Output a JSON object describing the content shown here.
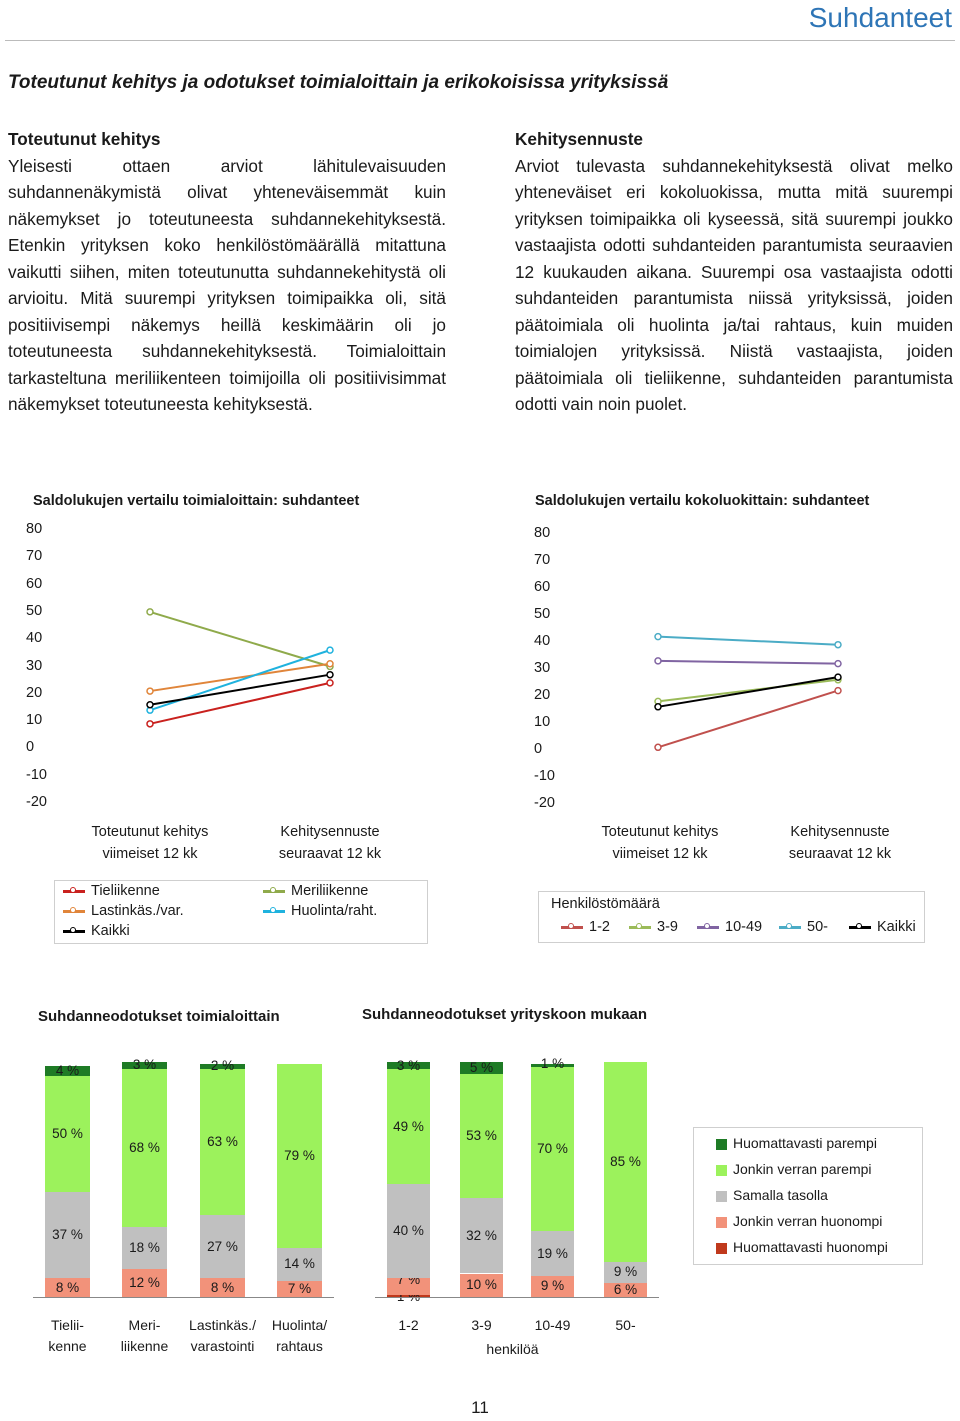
{
  "header": {
    "section": "Suhdanteet",
    "title": "Toteutunut kehitys ja odotukset toimialoittain ja erikokoisissa yrityksissä"
  },
  "left_column": {
    "heading": "Toteutunut kehitys",
    "text": "Yleisesti ottaen arviot lähitulevaisuuden suhdannenäkymistä olivat yhteneväisemmät kuin näkemykset jo toteutuneesta suhdannekehityksestä. Etenkin yrityksen koko henkilöstömäärällä mitattuna vaikutti siihen, miten toteutunutta suhdannekehitystä oli arvioitu. Mitä suurempi yrityksen toimipaikka oli, sitä positiivisempi näkemys heillä keskimäärin oli jo toteutuneesta suhdannekehityksestä. Toimialoittain tarkasteltuna meriliikenteen toimijoilla oli positiivisimmat näkemykset toteutuneesta kehityksestä."
  },
  "right_column": {
    "heading": "Kehitysennuste",
    "text": "Arviot tulevasta suhdannekehityksestä olivat melko yhteneväiset eri kokoluokissa, mutta mitä suurempi yrityksen toimipaikka oli kyseessä, sitä suurempi joukko vastaajista odotti suhdanteiden parantumista seuraavien 12 kuukauden aikana. Suurempi osa vastaajista odotti suhdanteiden parantumista niissä yrityksissä, joiden päätoimiala oli huolinta ja/tai rahtaus, kuin muiden toimialojen yrityksissä. Niistä vastaajista, joiden päätoimiala oli tieliikenne, suhdanteiden parantumista odotti vain noin puolet."
  },
  "chart_data": [
    {
      "type": "line",
      "title": "Saldolukujen vertailu toimialoittain: suhdanteet",
      "categories": [
        "Toteutunut kehitys viimeiset 12 kk",
        "Kehitysennuste seuraavat 12 kk"
      ],
      "category_lines": [
        [
          "Toteutunut kehitys",
          "viimeiset 12 kk"
        ],
        [
          "Kehitysennuste",
          "seuraavat 12 kk"
        ]
      ],
      "y_ticks": [
        "80",
        "70",
        "60",
        "50",
        "40",
        "30",
        "20",
        "10",
        "0",
        "-10",
        "-20"
      ],
      "ylim": [
        -20,
        80
      ],
      "series": [
        {
          "name": "Tieliikenne",
          "values": [
            9,
            24
          ],
          "color": "#c9211e"
        },
        {
          "name": "Meriliikenne",
          "values": [
            50,
            30
          ],
          "color": "#8faa4b"
        },
        {
          "name": "Lastinkäs./var.",
          "values": [
            21,
            31
          ],
          "color": "#e0853a"
        },
        {
          "name": "Huolinta/raht.",
          "values": [
            14,
            36
          ],
          "color": "#1fb2de"
        },
        {
          "name": "Kaikki",
          "values": [
            16,
            27
          ],
          "color": "#000000"
        }
      ]
    },
    {
      "type": "line",
      "title": "Saldolukujen vertailu kokoluokittain: suhdanteet",
      "categories": [
        "Toteutunut kehitys viimeiset 12 kk",
        "Kehitysennuste seuraavat 12 kk"
      ],
      "category_lines": [
        [
          "Toteutunut kehitys",
          "viimeiset 12 kk"
        ],
        [
          "Kehitysennuste",
          "seuraavat 12 kk"
        ]
      ],
      "y_ticks": [
        "80",
        "70",
        "60",
        "50",
        "40",
        "30",
        "20",
        "10",
        "0",
        "-10",
        "-20"
      ],
      "ylim": [
        -20,
        80
      ],
      "legend_title": "Henkilöstömäärä",
      "series": [
        {
          "name": "1-2",
          "values": [
            1,
            22
          ],
          "color": "#c0504d"
        },
        {
          "name": "3-9",
          "values": [
            18,
            26
          ],
          "color": "#9bbb59"
        },
        {
          "name": "10-49",
          "values": [
            33,
            32
          ],
          "color": "#8064a2"
        },
        {
          "name": "50-",
          "values": [
            42,
            39
          ],
          "color": "#4bacc6"
        },
        {
          "name": "Kaikki",
          "values": [
            16,
            27
          ],
          "color": "#000000"
        }
      ]
    },
    {
      "type": "bar",
      "stacked": true,
      "title": "Suhdanneodotukset toimialoittain",
      "categories": [
        "Tieliikenne",
        "Meriliikenne",
        "Lastinkäs./varastointi",
        "Huolinta/rahtaus"
      ],
      "category_lines": [
        [
          "Tielii-",
          "kenne"
        ],
        [
          "Meri-",
          "liikenne"
        ],
        [
          "Lastinkäs./",
          "varastointi"
        ],
        [
          "Huolinta/",
          "rahtaus"
        ]
      ],
      "series": [
        {
          "name": "Huomattavasti huonompi",
          "values": [
            0,
            0,
            0,
            0
          ],
          "labels": [
            "",
            "",
            "",
            ""
          ]
        },
        {
          "name": "Jonkin verran huonompi",
          "values": [
            8,
            12,
            8,
            7
          ],
          "labels": [
            "8 %",
            "12 %",
            "8 %",
            "7 %"
          ]
        },
        {
          "name": "Samalla tasolla",
          "values": [
            37,
            18,
            27,
            14
          ],
          "labels": [
            "37 %",
            "18 %",
            "27 %",
            "14 %"
          ]
        },
        {
          "name": "Jonkin verran parempi",
          "values": [
            50,
            68,
            63,
            79
          ],
          "labels": [
            "50 %",
            "68 %",
            "63 %",
            "79 %"
          ]
        },
        {
          "name": "Huomattavasti parempi",
          "values": [
            4,
            3,
            2,
            0
          ],
          "labels": [
            "4 %",
            "3 %",
            "2 %",
            ""
          ]
        }
      ]
    },
    {
      "type": "bar",
      "stacked": true,
      "title": "Suhdanneodotukset yrityskoon mukaan",
      "categories": [
        "1-2",
        "3-9",
        "10-49",
        "50-"
      ],
      "category_lines": [
        [
          "1-2"
        ],
        [
          "3-9"
        ],
        [
          "10-49"
        ],
        [
          "50-"
        ]
      ],
      "xlabel": "henkilöä",
      "series": [
        {
          "name": "Huomattavasti huonompi",
          "values": [
            1,
            0,
            0,
            0
          ],
          "labels": [
            "1 %",
            "",
            "",
            ""
          ]
        },
        {
          "name": "Jonkin verran huonompi",
          "values": [
            7,
            10,
            9,
            6
          ],
          "labels": [
            "7 %",
            "10 %",
            "9 %",
            "6 %"
          ]
        },
        {
          "name": "Samalla tasolla",
          "values": [
            40,
            32,
            19,
            9
          ],
          "labels": [
            "40 %",
            "32 %",
            "19 %",
            "9 %"
          ]
        },
        {
          "name": "Jonkin verran parempi",
          "values": [
            49,
            53,
            70,
            85
          ],
          "labels": [
            "49 %",
            "53 %",
            "70 %",
            "85 %"
          ]
        },
        {
          "name": "Huomattavasti parempi",
          "values": [
            3,
            5,
            1,
            0
          ],
          "labels": [
            "3 %",
            "5 %",
            "1 %",
            ""
          ]
        }
      ]
    }
  ],
  "bar_legend": {
    "items": [
      {
        "name": "Huomattavasti parempi",
        "color": "#1e7b25"
      },
      {
        "name": "Jonkin verran parempi",
        "color": "#9cf25c"
      },
      {
        "name": "Samalla tasolla",
        "color": "#c0c0c0"
      },
      {
        "name": "Jonkin verran huonompi",
        "color": "#f2927a"
      },
      {
        "name": "Huomattavasti huonompi",
        "color": "#c0391c"
      }
    ]
  },
  "footer": {
    "page_number": "11"
  }
}
